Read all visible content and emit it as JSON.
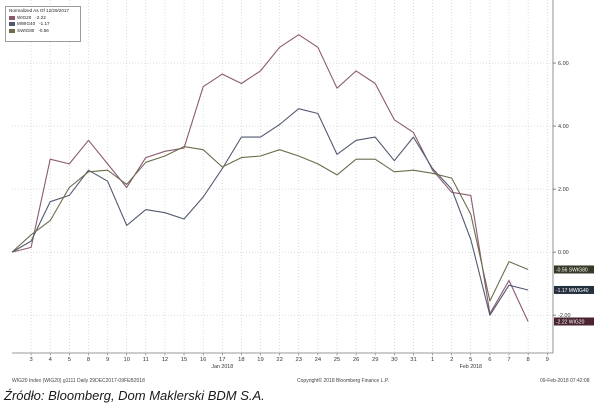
{
  "chart_data": {
    "type": "line",
    "legend": {
      "title": "Normalized As Of 12/29/2017",
      "entries": [
        {
          "name": "WIG20",
          "value": "-2.22",
          "color": "#8c5a6e"
        },
        {
          "name": "MWIG40",
          "value": "-1.17",
          "color": "#515a6f"
        },
        {
          "name": "SWIG80",
          "value": "-0.56",
          "color": "#6c6c4e"
        }
      ]
    },
    "ylim": [
      -3.2,
      8.0
    ],
    "yticks": [
      {
        "value": 6,
        "label": "6.00"
      },
      {
        "value": 4,
        "label": "4.00"
      },
      {
        "value": 2,
        "label": "2.00"
      },
      {
        "value": 0,
        "label": "0.00"
      },
      {
        "value": -2,
        "label": "-2.00"
      }
    ],
    "x_ticks": [
      "3",
      "4",
      "5",
      "8",
      "9",
      "10",
      "11",
      "12",
      "15",
      "16",
      "17",
      "18",
      "19",
      "22",
      "23",
      "24",
      "25",
      "26",
      "29",
      "30",
      "31",
      "1",
      "2",
      "5",
      "6",
      "7",
      "8",
      "9"
    ],
    "month_labels": [
      {
        "label": "Jan 2018",
        "tick_index": 10
      },
      {
        "label": "Feb 2018",
        "tick_index": 23
      }
    ],
    "series": [
      {
        "name": "WIG20",
        "color": "#8c5a6e",
        "last_label": "-2.22 WIG20",
        "label_bg": "#4a2430",
        "values": [
          0,
          0.15,
          2.95,
          2.8,
          3.55,
          2.8,
          2.05,
          3.0,
          3.2,
          3.3,
          5.25,
          5.65,
          5.35,
          5.75,
          6.5,
          6.9,
          6.5,
          5.2,
          5.75,
          5.35,
          4.2,
          3.8,
          2.6,
          1.9,
          1.8,
          -1.95,
          -0.9,
          -2.2
        ]
      },
      {
        "name": "MWIG40",
        "color": "#515a6f",
        "last_label": "-1.17 MWIG40",
        "label_bg": "#253140",
        "values": [
          0,
          0.35,
          1.6,
          1.8,
          2.6,
          2.25,
          0.85,
          1.35,
          1.25,
          1.05,
          1.75,
          2.65,
          3.65,
          3.65,
          4.05,
          4.55,
          4.4,
          3.1,
          3.55,
          3.65,
          2.9,
          3.65,
          2.65,
          2.0,
          0.4,
          -2.0,
          -1.05,
          -1.2
        ]
      },
      {
        "name": "SWIG80",
        "color": "#6c6c4e",
        "last_label": "-0.56 SWIG80",
        "label_bg": "#373a28",
        "values": [
          0,
          0.55,
          1.0,
          2.05,
          2.55,
          2.6,
          2.15,
          2.85,
          3.05,
          3.35,
          3.25,
          2.7,
          3.0,
          3.05,
          3.25,
          3.05,
          2.8,
          2.45,
          2.95,
          2.95,
          2.55,
          2.6,
          2.5,
          2.35,
          1.2,
          -1.55,
          -0.3,
          -0.55
        ]
      }
    ],
    "grid": true
  },
  "footer": {
    "left": "WIG20 Index (WIG20) g1111 Daily 29DEC2017-09FEB2018",
    "center": "Copyright© 2018 Bloomberg Finance L.P.",
    "right": "09-Feb-2018 07:42:08"
  },
  "source_caption": "Źródło: Bloomberg, Dom Maklerski BDM S.A."
}
